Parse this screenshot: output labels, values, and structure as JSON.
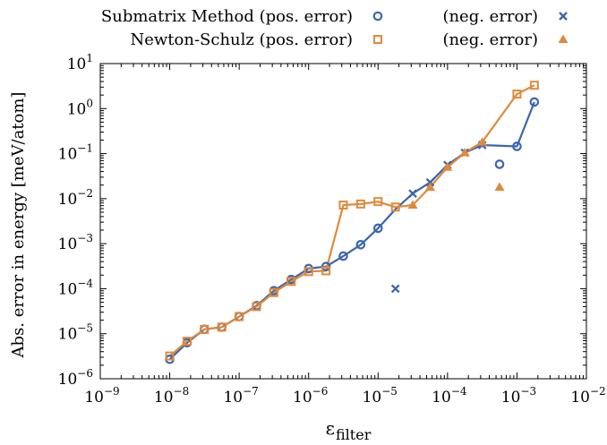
{
  "chart_data": {
    "type": "line",
    "xlabel": "ε",
    "xlabel_sub": "filter",
    "ylabel": "Abs. error in energy [meV/atom]",
    "x_scale": "log",
    "y_scale": "log",
    "xlim": [
      1e-09,
      0.01
    ],
    "ylim": [
      1e-06,
      10
    ],
    "x_tick_labels": [
      {
        "base": "10",
        "exp": "−9"
      },
      {
        "base": "10",
        "exp": "−8"
      },
      {
        "base": "10",
        "exp": "−7"
      },
      {
        "base": "10",
        "exp": "−6"
      },
      {
        "base": "10",
        "exp": "−5"
      },
      {
        "base": "10",
        "exp": "−4"
      },
      {
        "base": "10",
        "exp": "−3"
      },
      {
        "base": "10",
        "exp": "−2"
      }
    ],
    "y_tick_labels": [
      {
        "base": "10",
        "exp": "−6"
      },
      {
        "base": "10",
        "exp": "−5"
      },
      {
        "base": "10",
        "exp": "−4"
      },
      {
        "base": "10",
        "exp": "−3"
      },
      {
        "base": "10",
        "exp": "−2"
      },
      {
        "base": "10",
        "exp": "−1"
      },
      {
        "base": "10",
        "exp": "0"
      },
      {
        "base": "10",
        "exp": "1"
      }
    ],
    "legend_position": "top",
    "colors": {
      "submatrix": "#3a66b0",
      "newton": "#e08a3c"
    },
    "series": [
      {
        "key": "submatrix_line",
        "name": "",
        "color": "#3a66b0",
        "type": "line",
        "x": [
          1e-08,
          1.78e-08,
          3.16e-08,
          5.62e-08,
          1e-07,
          1.78e-07,
          3.16e-07,
          5.62e-07,
          1e-06,
          1.78e-06,
          3.16e-06,
          5.62e-06,
          1e-05,
          1.78e-05,
          3.16e-05,
          5.62e-05,
          0.0001,
          0.000178,
          0.000316,
          0.001,
          0.00178
        ],
        "y": [
          2.7e-06,
          6.3e-06,
          1.25e-05,
          1.4e-05,
          2.4e-05,
          4.2e-05,
          9e-05,
          0.00016,
          0.00028,
          0.00031,
          0.00053,
          0.00095,
          0.0022,
          0.0058,
          0.013,
          0.023,
          0.056,
          0.105,
          0.155,
          0.145,
          1.4
        ]
      },
      {
        "key": "newton_line",
        "name": "",
        "color": "#e08a3c",
        "type": "line",
        "x": [
          1e-08,
          1.78e-08,
          3.16e-08,
          5.62e-08,
          1e-07,
          1.78e-07,
          3.16e-07,
          5.62e-07,
          1e-06,
          1.78e-06,
          3.16e-06,
          5.62e-06,
          1e-05,
          1.78e-05,
          3.16e-05,
          5.62e-05,
          0.0001,
          0.000178,
          0.000316,
          0.001,
          0.00178
        ],
        "y": [
          3.2e-06,
          6.8e-06,
          1.25e-05,
          1.4e-05,
          2.4e-05,
          4e-05,
          8.2e-05,
          0.000145,
          0.00024,
          0.00025,
          0.0072,
          0.0076,
          0.0086,
          0.0065,
          0.0072,
          0.018,
          0.05,
          0.105,
          0.18,
          2.1,
          3.3
        ]
      },
      {
        "key": "submatrix_pos",
        "name": "Submatrix Method (pos. error)",
        "color": "#3a66b0",
        "type": "scatter",
        "marker": "circle",
        "x": [
          1e-08,
          1.78e-08,
          3.16e-08,
          5.62e-08,
          1e-07,
          1.78e-07,
          3.16e-07,
          5.62e-07,
          1e-06,
          1.78e-06,
          3.16e-06,
          5.62e-06,
          1e-05,
          0.000562,
          0.001,
          0.00178
        ],
        "y": [
          2.7e-06,
          6.3e-06,
          1.25e-05,
          1.4e-05,
          2.4e-05,
          4.2e-05,
          9e-05,
          0.00016,
          0.00028,
          0.00031,
          0.00053,
          0.00095,
          0.0022,
          0.058,
          0.145,
          1.4
        ]
      },
      {
        "key": "submatrix_neg",
        "name": "(neg. error)",
        "color": "#3a66b0",
        "type": "scatter",
        "marker": "cross",
        "x": [
          1.78e-05,
          3.16e-05,
          5.62e-05,
          0.0001,
          0.000178,
          0.000316
        ],
        "y": [
          0.0001,
          0.013,
          0.023,
          0.056,
          0.105,
          0.155
        ]
      },
      {
        "key": "newton_pos",
        "name": "Newton-Schulz (pos. error)",
        "color": "#e08a3c",
        "type": "scatter",
        "marker": "square",
        "x": [
          1e-08,
          1.78e-08,
          3.16e-08,
          5.62e-08,
          1e-07,
          1.78e-07,
          3.16e-07,
          5.62e-07,
          1e-06,
          1.78e-06,
          3.16e-06,
          5.62e-06,
          1e-05,
          1.78e-05,
          0.001,
          0.00178
        ],
        "y": [
          3.2e-06,
          6.8e-06,
          1.25e-05,
          1.4e-05,
          2.4e-05,
          4e-05,
          8.2e-05,
          0.000145,
          0.00024,
          0.00025,
          0.0072,
          0.0076,
          0.0086,
          0.0065,
          2.1,
          3.3
        ]
      },
      {
        "key": "newton_neg",
        "name": "(neg. error)",
        "color": "#e08a3c",
        "type": "scatter",
        "marker": "triangle",
        "x": [
          3.16e-05,
          5.62e-05,
          0.0001,
          0.000178,
          0.000316,
          0.000562
        ],
        "y": [
          0.0072,
          0.018,
          0.05,
          0.105,
          0.18,
          0.018
        ]
      }
    ]
  }
}
